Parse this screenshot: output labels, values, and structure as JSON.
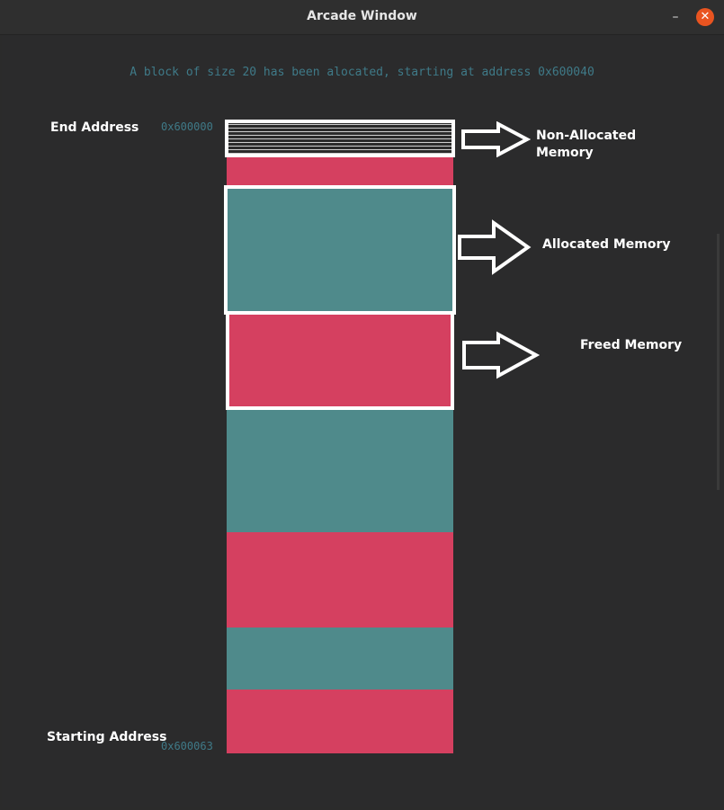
{
  "window": {
    "title": "Arcade Window",
    "minimize_glyph": "–",
    "close_glyph": "✕"
  },
  "status_message": "A block of size 20 has been alocated, starting at address 0x600040",
  "labels": {
    "end": "End Address",
    "start": "Starting Address"
  },
  "addresses": {
    "end": "0x600000",
    "start": "0x600063"
  },
  "legend": {
    "non_allocated": "Non-Allocated Memory",
    "allocated": "Allocated Memory",
    "freed": "Freed Memory"
  },
  "colors": {
    "freed": "#d54060",
    "allocated": "#4f8a8b",
    "background": "#2b2b2b"
  },
  "memory_blocks": [
    {
      "kind": "non-allocated"
    },
    {
      "kind": "freed"
    },
    {
      "kind": "allocated"
    },
    {
      "kind": "freed"
    },
    {
      "kind": "allocated"
    },
    {
      "kind": "freed"
    },
    {
      "kind": "allocated"
    },
    {
      "kind": "freed"
    }
  ]
}
